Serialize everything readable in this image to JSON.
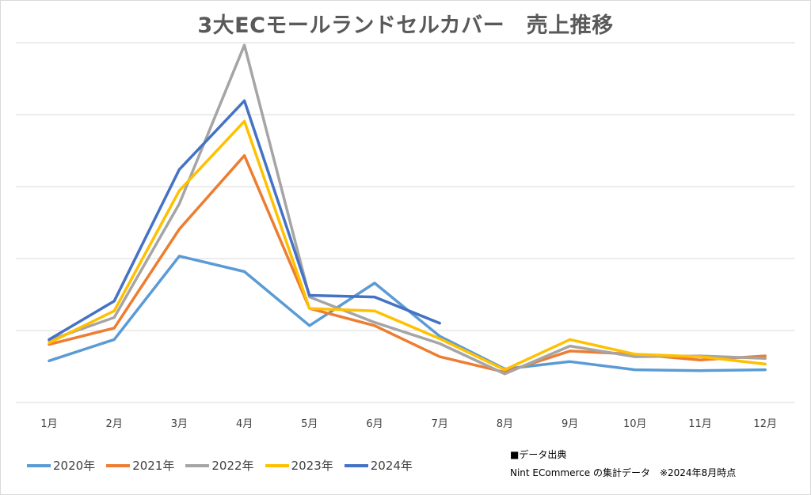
{
  "chart_data": {
    "type": "line",
    "title": "3大ECモールランドセルカバー　売上推移",
    "categories": [
      "1月",
      "2月",
      "3月",
      "4月",
      "5月",
      "6月",
      "7月",
      "8月",
      "9月",
      "10月",
      "11月",
      "12月"
    ],
    "ylim": [
      0,
      440
    ],
    "grid": true,
    "legend_position": "bottom-left",
    "series": [
      {
        "name": "2020年",
        "color": "#5b9bd5",
        "values": [
          51,
          77,
          179,
          160,
          94,
          146,
          81,
          41,
          50,
          40,
          39,
          40
        ]
      },
      {
        "name": "2021年",
        "color": "#ed7d31",
        "values": [
          71,
          91,
          212,
          302,
          115,
          94,
          56,
          37,
          63,
          59,
          52,
          57
        ]
      },
      {
        "name": "2022年",
        "color": "#a5a5a5",
        "values": [
          76,
          104,
          243,
          437,
          129,
          98,
          72,
          35,
          69,
          56,
          57,
          54
        ]
      },
      {
        "name": "2023年",
        "color": "#ffc000",
        "values": [
          73,
          112,
          259,
          344,
          115,
          112,
          78,
          40,
          77,
          59,
          56,
          47
        ]
      },
      {
        "name": "2024年",
        "color": "#4472c4",
        "values": [
          77,
          124,
          285,
          369,
          131,
          129,
          97,
          null,
          null,
          null,
          null,
          null
        ]
      }
    ]
  },
  "source": {
    "heading": "■データ出典",
    "note": "Nint ECommerce の集計データ　※2024年8月時点"
  }
}
